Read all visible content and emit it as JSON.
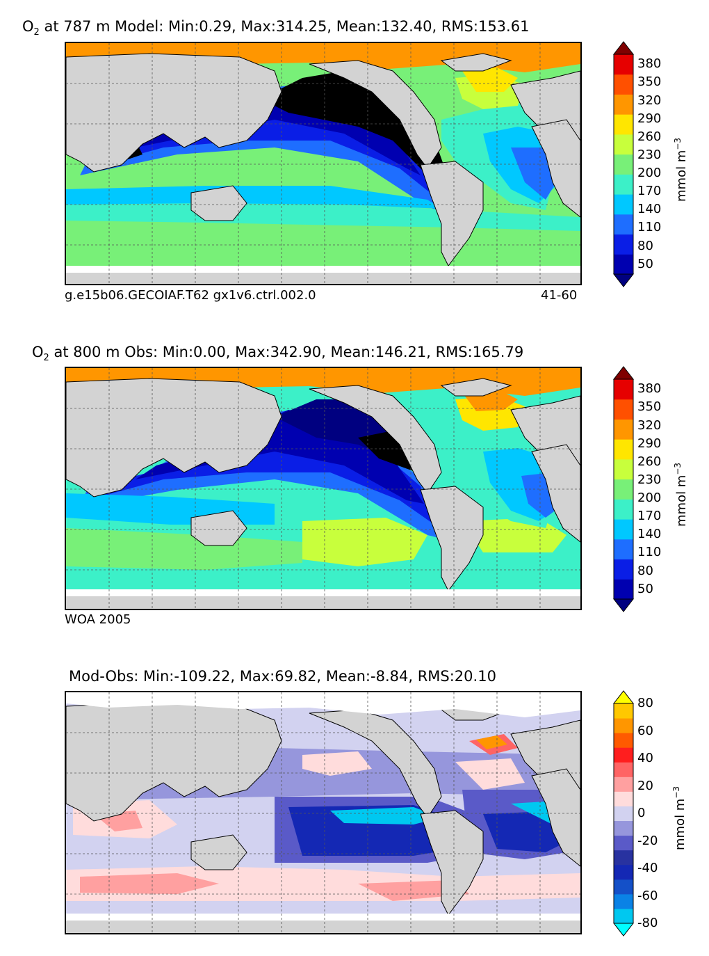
{
  "panels": [
    {
      "title_prefix": "O",
      "title_sub": "2",
      "title_rest": " at 787 m Model: Min:0.29, Max:314.25, Mean:132.40, RMS:153.61",
      "caption_left": "g.e15b06.GECOIAF.T62 gx1v6.ctrl.002.0",
      "caption_right": "41-60",
      "unit": "mmol m",
      "unit_exp": "−3",
      "ticks": [
        "50",
        "80",
        "110",
        "140",
        "170",
        "200",
        "230",
        "260",
        "290",
        "320",
        "350",
        "380"
      ],
      "colors": [
        "#000080",
        "#0000b0",
        "#0a1ee6",
        "#1e6eff",
        "#00c8ff",
        "#3cf0c8",
        "#78f078",
        "#c8ff3c",
        "#ffe600",
        "#ff9600",
        "#ff5000",
        "#e60000",
        "#800000"
      ]
    },
    {
      "title_prefix": "O",
      "title_sub": "2",
      "title_rest": " at 800 m Obs: Min:0.00, Max:342.90, Mean:146.21, RMS:165.79",
      "caption_left": "WOA 2005",
      "caption_right": "",
      "unit": "mmol m",
      "unit_exp": "−3",
      "ticks": [
        "50",
        "80",
        "110",
        "140",
        "170",
        "200",
        "230",
        "260",
        "290",
        "320",
        "350",
        "380"
      ],
      "colors": [
        "#000080",
        "#0000b0",
        "#0a1ee6",
        "#1e6eff",
        "#00c8ff",
        "#3cf0c8",
        "#78f078",
        "#c8ff3c",
        "#ffe600",
        "#ff9600",
        "#ff5000",
        "#e60000",
        "#800000"
      ]
    },
    {
      "title_prefix": "",
      "title_sub": "",
      "title_rest": "Mod-Obs: Min:-109.22, Max:69.82, Mean:-8.84, RMS:20.10",
      "caption_left": "",
      "caption_right": "",
      "unit": "mmol m",
      "unit_exp": "−3",
      "ticks": [
        "-80",
        "-60",
        "-40",
        "-20",
        "0",
        "20",
        "40",
        "60",
        "80"
      ],
      "colors": [
        "#00ffff",
        "#00c8f0",
        "#0a82e6",
        "#1450c8",
        "#1428b4",
        "#2832a0",
        "#5a5ac8",
        "#9696dc",
        "#d2d2f0",
        "#ffdcdc",
        "#ffa0a0",
        "#ff6464",
        "#ff1e1e",
        "#ff5a00",
        "#ff9600",
        "#ffc800",
        "#ffff00"
      ]
    }
  ],
  "colors": {
    "land": "#d3d3d3",
    "ice": "#ffffff",
    "arctic_model": "#ff9600",
    "deep_low": "#000000"
  }
}
